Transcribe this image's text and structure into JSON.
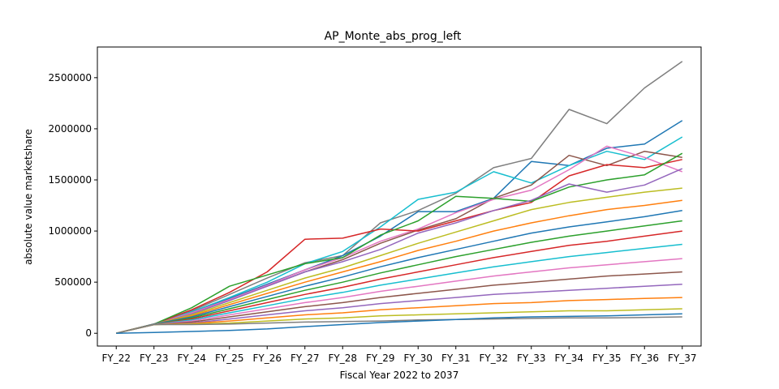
{
  "chart_data": {
    "type": "line",
    "title": "AP_Monte_abs_prog_left",
    "xlabel": "Fiscal Year 2022 to 2037",
    "ylabel": "absolute value marketshare",
    "categories": [
      "FY_22",
      "FY_23",
      "FY_24",
      "FY_25",
      "FY_26",
      "FY_27",
      "FY_28",
      "FY_29",
      "FY_30",
      "FY_31",
      "FY_32",
      "FY_33",
      "FY_34",
      "FY_35",
      "FY_36",
      "FY_37"
    ],
    "y_ticks": [
      0,
      500000,
      1000000,
      1500000,
      2000000,
      2500000
    ],
    "y_tick_labels": [
      "0",
      "500000",
      "1000000",
      "1500000",
      "2000000",
      "2500000"
    ],
    "ylim": [
      -125000,
      2800000
    ],
    "grid": false,
    "legend": "none",
    "series_colors": [
      "#1f77b4",
      "#ff7f0e",
      "#2ca02c",
      "#d62728",
      "#9467bd",
      "#8c564b",
      "#e377c2",
      "#7f7f7f",
      "#bcbd22",
      "#17becf"
    ],
    "series": [
      {
        "color": "#7f7f7f",
        "values": [
          0,
          90000,
          220000,
          380000,
          540000,
          690000,
          760000,
          1080000,
          1200000,
          1370000,
          1620000,
          1710000,
          2190000,
          2050000,
          2400000,
          2660000
        ]
      },
      {
        "color": "#1f77b4",
        "values": [
          0,
          90000,
          200000,
          340000,
          480000,
          620000,
          760000,
          950000,
          1190000,
          1190000,
          1320000,
          1680000,
          1640000,
          1810000,
          1850000,
          2080000
        ]
      },
      {
        "color": "#17becf",
        "values": [
          0,
          90000,
          210000,
          350000,
          500000,
          680000,
          800000,
          1040000,
          1310000,
          1380000,
          1580000,
          1470000,
          1640000,
          1780000,
          1700000,
          1920000
        ]
      },
      {
        "color": "#8c564b",
        "values": [
          0,
          90000,
          200000,
          330000,
          460000,
          600000,
          720000,
          880000,
          1010000,
          1120000,
          1320000,
          1450000,
          1740000,
          1640000,
          1780000,
          1720000
        ]
      },
      {
        "color": "#e377c2",
        "values": [
          0,
          90000,
          200000,
          330000,
          470000,
          620000,
          740000,
          900000,
          1020000,
          1180000,
          1310000,
          1400000,
          1600000,
          1830000,
          1720000,
          1580000
        ]
      },
      {
        "color": "#d62728",
        "values": [
          0,
          90000,
          230000,
          400000,
          600000,
          920000,
          930000,
          1020000,
          1000000,
          1100000,
          1200000,
          1280000,
          1540000,
          1650000,
          1620000,
          1700000
        ]
      },
      {
        "color": "#2ca02c",
        "values": [
          0,
          90000,
          250000,
          460000,
          570000,
          680000,
          740000,
          960000,
          1100000,
          1340000,
          1320000,
          1290000,
          1430000,
          1500000,
          1550000,
          1760000
        ]
      },
      {
        "color": "#9467bd",
        "values": [
          0,
          90000,
          190000,
          320000,
          460000,
          600000,
          700000,
          820000,
          980000,
          1080000,
          1200000,
          1300000,
          1460000,
          1380000,
          1450000,
          1610000
        ]
      },
      {
        "color": "#bcbd22",
        "values": [
          0,
          90000,
          180000,
          300000,
          420000,
          540000,
          640000,
          760000,
          880000,
          990000,
          1100000,
          1210000,
          1280000,
          1330000,
          1380000,
          1420000
        ]
      },
      {
        "color": "#ff7f0e",
        "values": [
          0,
          90000,
          170000,
          280000,
          390000,
          500000,
          600000,
          700000,
          810000,
          900000,
          1000000,
          1080000,
          1150000,
          1210000,
          1250000,
          1300000
        ]
      },
      {
        "color": "#1f77b4",
        "values": [
          0,
          90000,
          160000,
          260000,
          360000,
          460000,
          550000,
          650000,
          740000,
          820000,
          900000,
          980000,
          1040000,
          1090000,
          1140000,
          1200000
        ]
      },
      {
        "color": "#2ca02c",
        "values": [
          0,
          85000,
          150000,
          240000,
          330000,
          420000,
          500000,
          590000,
          670000,
          750000,
          820000,
          890000,
          950000,
          1000000,
          1050000,
          1100000
        ]
      },
      {
        "color": "#d62728",
        "values": [
          0,
          85000,
          140000,
          220000,
          300000,
          380000,
          450000,
          530000,
          600000,
          670000,
          740000,
          800000,
          860000,
          900000,
          950000,
          1000000
        ]
      },
      {
        "color": "#17becf",
        "values": [
          0,
          85000,
          130000,
          200000,
          270000,
          340000,
          400000,
          470000,
          530000,
          590000,
          650000,
          700000,
          750000,
          790000,
          830000,
          870000
        ]
      },
      {
        "color": "#e377c2",
        "values": [
          0,
          85000,
          120000,
          180000,
          240000,
          300000,
          350000,
          410000,
          460000,
          510000,
          560000,
          600000,
          640000,
          670000,
          700000,
          730000
        ]
      },
      {
        "color": "#8c564b",
        "values": [
          0,
          85000,
          110000,
          160000,
          210000,
          260000,
          300000,
          350000,
          390000,
          430000,
          470000,
          500000,
          530000,
          560000,
          580000,
          600000
        ]
      },
      {
        "color": "#9467bd",
        "values": [
          0,
          85000,
          100000,
          140000,
          180000,
          220000,
          250000,
          290000,
          320000,
          350000,
          380000,
          400000,
          420000,
          440000,
          460000,
          480000
        ]
      },
      {
        "color": "#ff7f0e",
        "values": [
          0,
          85000,
          95000,
          120000,
          150000,
          180000,
          200000,
          230000,
          250000,
          270000,
          290000,
          300000,
          320000,
          330000,
          340000,
          350000
        ]
      },
      {
        "color": "#bcbd22",
        "values": [
          0,
          85000,
          90000,
          100000,
          120000,
          140000,
          150000,
          170000,
          180000,
          190000,
          200000,
          210000,
          220000,
          220000,
          230000,
          240000
        ]
      },
      {
        "color": "#7f7f7f",
        "values": [
          0,
          85000,
          85000,
          90000,
          100000,
          110000,
          115000,
          120000,
          130000,
          135000,
          140000,
          145000,
          150000,
          150000,
          155000,
          160000
        ]
      },
      {
        "color": "#1f77b4",
        "values": [
          0,
          8000,
          18000,
          28000,
          42000,
          65000,
          85000,
          105000,
          120000,
          135000,
          150000,
          160000,
          165000,
          170000,
          180000,
          190000
        ]
      }
    ]
  }
}
